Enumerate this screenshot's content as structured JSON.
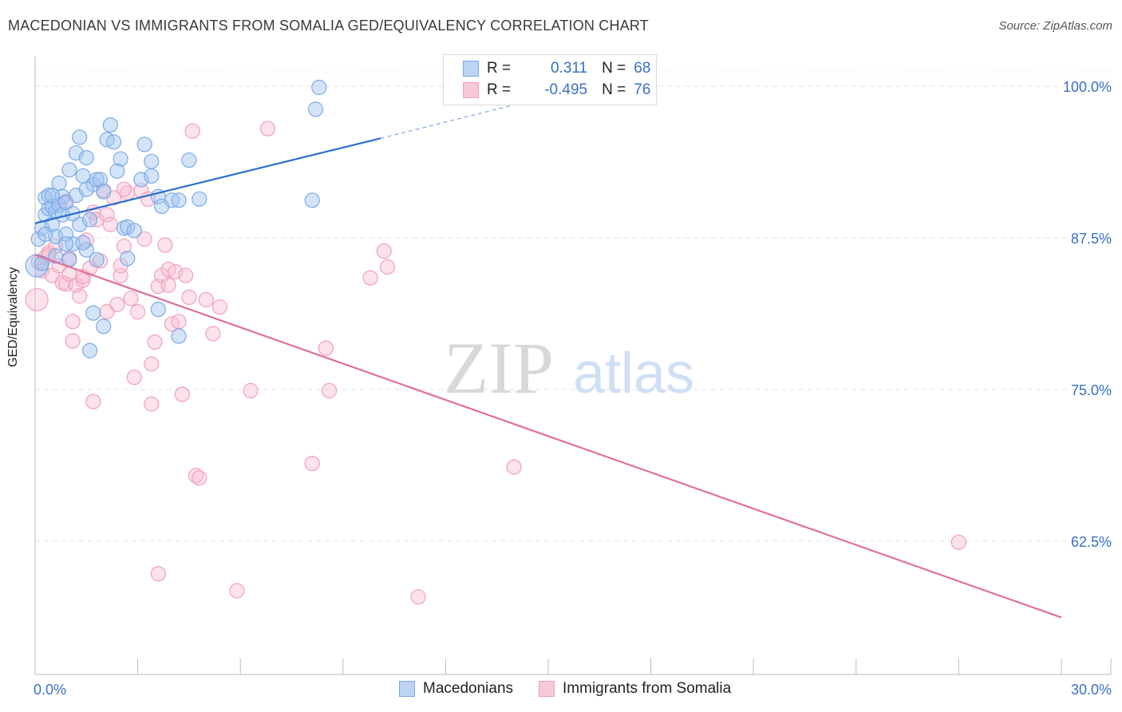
{
  "title": "MACEDONIAN VS IMMIGRANTS FROM SOMALIA GED/EQUIVALENCY CORRELATION CHART",
  "source": "Source: ZipAtlas.com",
  "colors": {
    "blue": "#7aaae8",
    "blue_line": "#2a6fcf",
    "pink": "#f0a0b8",
    "pink_line": "#e06f98",
    "axis_text": "#3a6fc9"
  },
  "legend": {
    "row1": {
      "r_label": "R =",
      "r_value": "0.311",
      "n_label": "N =",
      "n_value": "68"
    },
    "row2": {
      "r_label": "R =",
      "r_value": "-0.495",
      "n_label": "N =",
      "n_value": "76"
    }
  },
  "bottom_legend": {
    "series1": "Macedonians",
    "series2": "Immigrants from Somalia"
  },
  "chart_data": {
    "type": "scatter",
    "title": "MACEDONIAN VS IMMIGRANTS FROM SOMALIA GED/EQUIVALENCY CORRELATION CHART",
    "xlabel": "",
    "ylabel": "GED/Equivalency",
    "xlim": [
      0,
      30
    ],
    "ylim": [
      51.5,
      102.5
    ],
    "x_tick_labels": [
      "0.0%",
      "30.0%"
    ],
    "y_ticks": [
      62.5,
      75.0,
      87.5,
      100.0
    ],
    "y_tick_labels": [
      "62.5%",
      "75.0%",
      "87.5%",
      "100.0%"
    ],
    "watermark": {
      "zip": "ZIP",
      "atlas": "atlas"
    },
    "series": [
      {
        "name": "Macedonians",
        "R": 0.311,
        "N": 68,
        "trend": {
          "x0": 0,
          "y0": 88.7,
          "x1": 10.1,
          "y1": 95.7,
          "x_dash_end": 14.2,
          "y_dash_end": 98.6
        },
        "points": [
          [
            0.1,
            87.4
          ],
          [
            0.2,
            88.3
          ],
          [
            0.3,
            90.8
          ],
          [
            0.3,
            89.4
          ],
          [
            0.4,
            89.9
          ],
          [
            0.4,
            91.0
          ],
          [
            0.5,
            90.1
          ],
          [
            0.5,
            88.6
          ],
          [
            0.6,
            89.7
          ],
          [
            0.6,
            87.6
          ],
          [
            0.7,
            90.2
          ],
          [
            0.7,
            92.0
          ],
          [
            0.8,
            89.4
          ],
          [
            0.8,
            90.9
          ],
          [
            0.9,
            87.8
          ],
          [
            0.9,
            90.4
          ],
          [
            1.0,
            85.7
          ],
          [
            1.0,
            93.1
          ],
          [
            1.1,
            87.0
          ],
          [
            1.2,
            94.5
          ],
          [
            1.2,
            91.0
          ],
          [
            1.3,
            95.8
          ],
          [
            1.3,
            88.6
          ],
          [
            1.4,
            92.6
          ],
          [
            1.5,
            94.1
          ],
          [
            1.5,
            86.5
          ],
          [
            1.6,
            89.0
          ],
          [
            1.7,
            91.9
          ],
          [
            1.8,
            92.3
          ],
          [
            1.9,
            92.3
          ],
          [
            2.0,
            91.3
          ],
          [
            2.1,
            95.6
          ],
          [
            2.2,
            96.8
          ],
          [
            2.3,
            95.4
          ],
          [
            2.5,
            94.0
          ],
          [
            2.6,
            88.3
          ],
          [
            2.7,
            88.4
          ],
          [
            2.7,
            85.8
          ],
          [
            3.1,
            92.3
          ],
          [
            3.2,
            95.2
          ],
          [
            3.4,
            93.8
          ],
          [
            3.4,
            92.6
          ],
          [
            3.6,
            90.9
          ],
          [
            3.7,
            90.1
          ],
          [
            4.0,
            90.6
          ],
          [
            4.2,
            90.6
          ],
          [
            4.5,
            93.9
          ],
          [
            4.8,
            90.7
          ],
          [
            8.1,
            90.6
          ],
          [
            8.2,
            98.1
          ],
          [
            8.3,
            99.9
          ],
          [
            1.6,
            78.2
          ],
          [
            2.0,
            80.2
          ],
          [
            1.7,
            81.3
          ],
          [
            3.6,
            81.6
          ],
          [
            4.2,
            79.4
          ],
          [
            0.05,
            85.2
          ],
          [
            0.2,
            85.4
          ],
          [
            0.5,
            91.0
          ],
          [
            0.9,
            87.0
          ],
          [
            1.5,
            91.5
          ],
          [
            0.3,
            87.8
          ],
          [
            2.9,
            88.1
          ],
          [
            1.1,
            89.5
          ],
          [
            1.8,
            85.7
          ],
          [
            1.4,
            87.1
          ],
          [
            0.6,
            86.0
          ],
          [
            2.4,
            93.0
          ]
        ]
      },
      {
        "name": "Immigrants from Somalia",
        "R": -0.495,
        "N": 76,
        "trend": {
          "x0": 0,
          "y0": 86.1,
          "x1": 30,
          "y1": 56.2
        },
        "points": [
          [
            0.05,
            82.4
          ],
          [
            0.1,
            85.5
          ],
          [
            0.2,
            84.8
          ],
          [
            0.3,
            85.9
          ],
          [
            0.4,
            86.3
          ],
          [
            0.5,
            84.4
          ],
          [
            0.6,
            86.8
          ],
          [
            0.7,
            85.2
          ],
          [
            0.8,
            83.8
          ],
          [
            0.9,
            83.7
          ],
          [
            1.0,
            84.5
          ],
          [
            1.1,
            80.6
          ],
          [
            1.1,
            79.0
          ],
          [
            1.2,
            83.6
          ],
          [
            1.3,
            82.7
          ],
          [
            1.4,
            84.0
          ],
          [
            1.4,
            84.3
          ],
          [
            1.5,
            87.3
          ],
          [
            1.6,
            85.0
          ],
          [
            1.7,
            89.6
          ],
          [
            1.8,
            89.0
          ],
          [
            1.9,
            85.6
          ],
          [
            2.0,
            91.4
          ],
          [
            2.1,
            81.4
          ],
          [
            2.1,
            89.4
          ],
          [
            2.2,
            88.6
          ],
          [
            2.3,
            90.8
          ],
          [
            2.4,
            82.0
          ],
          [
            2.5,
            84.4
          ],
          [
            2.5,
            85.2
          ],
          [
            2.6,
            86.8
          ],
          [
            2.7,
            91.2
          ],
          [
            2.8,
            82.5
          ],
          [
            2.9,
            76.0
          ],
          [
            3.0,
            81.4
          ],
          [
            3.1,
            91.4
          ],
          [
            3.2,
            87.4
          ],
          [
            3.3,
            90.7
          ],
          [
            3.4,
            73.8
          ],
          [
            3.4,
            77.1
          ],
          [
            3.5,
            78.9
          ],
          [
            3.6,
            83.5
          ],
          [
            3.7,
            84.4
          ],
          [
            3.8,
            86.9
          ],
          [
            3.9,
            83.6
          ],
          [
            3.9,
            84.9
          ],
          [
            4.0,
            80.4
          ],
          [
            4.1,
            84.7
          ],
          [
            4.2,
            80.6
          ],
          [
            4.3,
            74.6
          ],
          [
            4.4,
            84.4
          ],
          [
            4.5,
            82.6
          ],
          [
            4.6,
            96.3
          ],
          [
            4.7,
            67.9
          ],
          [
            4.8,
            67.7
          ],
          [
            5.0,
            82.4
          ],
          [
            5.2,
            79.6
          ],
          [
            5.4,
            81.8
          ],
          [
            5.9,
            58.4
          ],
          [
            6.3,
            74.9
          ],
          [
            6.8,
            96.5
          ],
          [
            8.1,
            68.9
          ],
          [
            8.5,
            78.4
          ],
          [
            8.6,
            74.9
          ],
          [
            9.8,
            84.2
          ],
          [
            10.2,
            86.4
          ],
          [
            10.3,
            85.1
          ],
          [
            11.2,
            57.9
          ],
          [
            14.0,
            68.6
          ],
          [
            27.0,
            62.4
          ],
          [
            3.6,
            59.8
          ],
          [
            1.7,
            74.0
          ],
          [
            0.4,
            86.1
          ],
          [
            1.0,
            85.8
          ],
          [
            2.6,
            91.5
          ],
          [
            0.9,
            90.5
          ]
        ]
      }
    ]
  }
}
